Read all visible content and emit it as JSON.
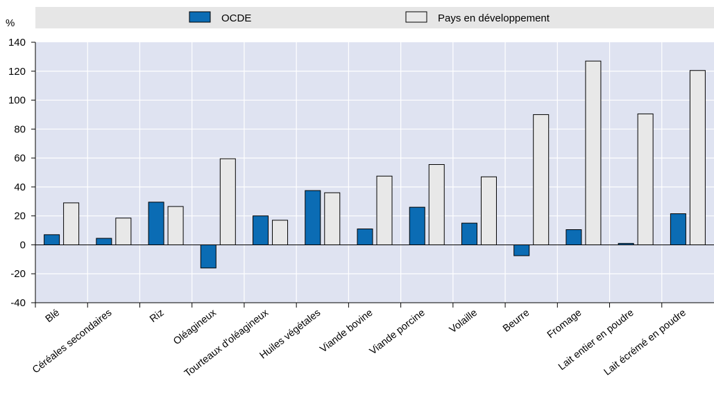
{
  "chart_data": {
    "type": "bar",
    "ylabel": "%",
    "ylim": [
      -40,
      140
    ],
    "yticks": [
      -40,
      -20,
      0,
      20,
      40,
      60,
      80,
      100,
      120,
      140
    ],
    "grid": true,
    "legend_position": "top",
    "categories": [
      "Blé",
      "Céréales secondaires",
      "Riz",
      "Oléagineux",
      "Tourteaux d'oléagineux",
      "Huiles végétales",
      "Viande bovine",
      "Viande porcine",
      "Volaille",
      "Beurre",
      "Fromage",
      "Lait entier en poudre",
      "Lait écrémé en poudre"
    ],
    "series": [
      {
        "name": "OCDE",
        "color": "#0b6cb4",
        "values": [
          7,
          4.5,
          29.5,
          -16,
          20,
          37.5,
          11,
          26,
          15,
          -7.5,
          10.5,
          1,
          21.5
        ]
      },
      {
        "name": "Pays en développement",
        "color": "#e8e8e8",
        "values": [
          29,
          18.5,
          26.5,
          59.5,
          17,
          36,
          47.5,
          55.5,
          47,
          90,
          127,
          90.5,
          120.5
        ]
      }
    ],
    "colors": {
      "plot_background": "#dfe3f1",
      "legend_band": "#e6e6e6",
      "grid": "#ffffff"
    }
  }
}
